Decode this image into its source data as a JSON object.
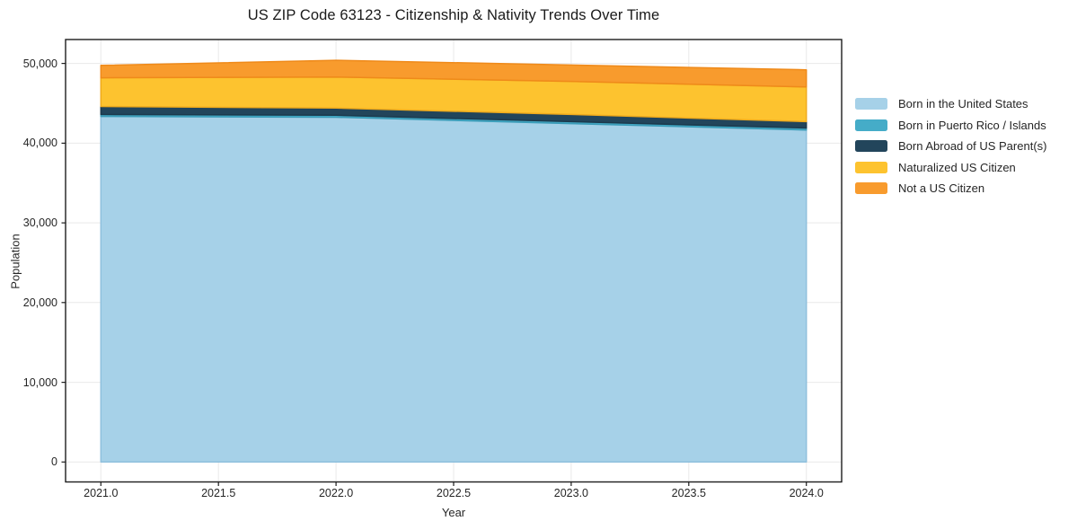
{
  "chart_data": {
    "type": "area",
    "stacked": true,
    "title": "US ZIP Code 63123 - Citizenship & Nativity Trends Over Time",
    "xlabel": "Year",
    "ylabel": "Population",
    "x": [
      2021,
      2022,
      2023,
      2024
    ],
    "series": [
      {
        "name": "Born in the United States",
        "color": "#a6d1e8",
        "edge": "#8fc0dd",
        "values": [
          43350,
          43250,
          42450,
          41650
        ]
      },
      {
        "name": "Born in Puerto Rico / Islands",
        "color": "#45acc8",
        "edge": "#3a9cb8",
        "values": [
          250,
          250,
          250,
          250
        ]
      },
      {
        "name": "Born Abroad of US Parent(s)",
        "color": "#22455b",
        "edge": "#1c3a4d",
        "values": [
          1000,
          900,
          900,
          800
        ]
      },
      {
        "name": "Naturalized US Citizen",
        "color": "#fdc32f",
        "edge": "#f0ab1c",
        "values": [
          3600,
          3900,
          4150,
          4350
        ]
      },
      {
        "name": "Not a US Citizen",
        "color": "#f89b2d",
        "edge": "#ef8a1a",
        "values": [
          1550,
          2100,
          2050,
          2150
        ]
      }
    ],
    "xticks": {
      "values": [
        2021.0,
        2021.5,
        2022.0,
        2022.5,
        2023.0,
        2023.5,
        2024.0
      ],
      "labels": [
        "2021.0",
        "2021.5",
        "2022.0",
        "2022.5",
        "2023.0",
        "2023.5",
        "2024.0"
      ]
    },
    "yticks": {
      "values": [
        0,
        10000,
        20000,
        30000,
        40000,
        50000
      ],
      "labels": [
        "0",
        "10,000",
        "20,000",
        "30,000",
        "40,000",
        "50,000"
      ]
    },
    "xlim": [
      2020.85,
      2024.15
    ],
    "ylim": [
      -2500,
      53000
    ],
    "grid": true,
    "legend_position": "right",
    "frame_color": "#1d1d1d",
    "grid_color": "#e9e9e9"
  }
}
